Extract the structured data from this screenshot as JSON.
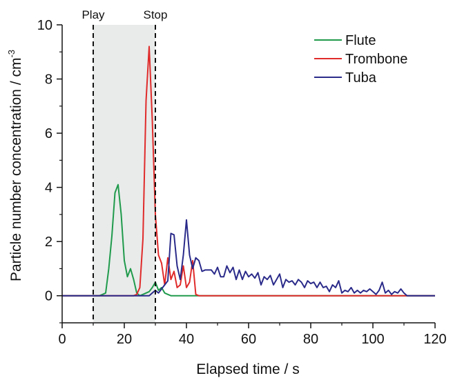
{
  "chart_data": {
    "type": "line",
    "title": "",
    "xlabel": "Elapsed time / s",
    "ylabel": "Particle number concentration / cm",
    "ylabel_superscript": "-3",
    "xlim": [
      0,
      120
    ],
    "ylim": [
      -1,
      10
    ],
    "x_ticks": [
      0,
      20,
      40,
      60,
      80,
      100,
      120
    ],
    "y_ticks": [
      0,
      2,
      4,
      6,
      8,
      10
    ],
    "grid": false,
    "legend_position": "top-right",
    "markers": [
      {
        "label": "Play",
        "x": 10
      },
      {
        "label": "Stop",
        "x": 30
      }
    ],
    "shaded_region": {
      "x": [
        10,
        30
      ],
      "color": "#e8ebea"
    },
    "series": [
      {
        "name": "Flute",
        "color": "#1f9a4b",
        "points": [
          [
            0,
            0
          ],
          [
            10,
            0
          ],
          [
            12,
            0
          ],
          [
            13,
            0.05
          ],
          [
            14,
            0.1
          ],
          [
            15,
            1.0
          ],
          [
            16,
            2.2
          ],
          [
            17,
            3.8
          ],
          [
            18,
            4.1
          ],
          [
            19,
            3.0
          ],
          [
            20,
            1.3
          ],
          [
            21,
            0.7
          ],
          [
            22,
            1.0
          ],
          [
            23,
            0.6
          ],
          [
            24,
            0.1
          ],
          [
            25,
            0
          ],
          [
            26,
            0.05
          ],
          [
            27,
            0.1
          ],
          [
            28,
            0.15
          ],
          [
            29,
            0.3
          ],
          [
            30,
            0.5
          ],
          [
            31,
            0.2
          ],
          [
            32,
            0.3
          ],
          [
            33,
            0.1
          ],
          [
            34,
            0.05
          ],
          [
            35,
            0
          ],
          [
            45,
            0
          ],
          [
            120,
            0
          ]
        ]
      },
      {
        "name": "Trombone",
        "color": "#e02a2a",
        "points": [
          [
            0,
            0
          ],
          [
            10,
            0
          ],
          [
            23,
            0
          ],
          [
            24,
            0.05
          ],
          [
            25,
            0.3
          ],
          [
            26,
            2.1
          ],
          [
            27,
            7.2
          ],
          [
            28,
            9.2
          ],
          [
            29,
            6.5
          ],
          [
            30,
            3.0
          ],
          [
            31,
            1.5
          ],
          [
            32,
            1.2
          ],
          [
            33,
            0.4
          ],
          [
            34,
            1.4
          ],
          [
            35,
            0.6
          ],
          [
            36,
            0.9
          ],
          [
            37,
            0.3
          ],
          [
            38,
            0.4
          ],
          [
            39,
            1.1
          ],
          [
            40,
            0.3
          ],
          [
            41,
            0.5
          ],
          [
            42,
            1.3
          ],
          [
            43,
            0.05
          ],
          [
            44,
            0
          ],
          [
            120,
            0
          ]
        ]
      },
      {
        "name": "Tuba",
        "color": "#2a2a8a",
        "points": [
          [
            0,
            0
          ],
          [
            28,
            0
          ],
          [
            29,
            0.1
          ],
          [
            30,
            0.2
          ],
          [
            31,
            0.1
          ],
          [
            32,
            0.25
          ],
          [
            33,
            0.4
          ],
          [
            34,
            0.55
          ],
          [
            35,
            2.3
          ],
          [
            36,
            2.25
          ],
          [
            37,
            1.1
          ],
          [
            38,
            0.6
          ],
          [
            39,
            1.5
          ],
          [
            40,
            2.8
          ],
          [
            41,
            1.5
          ],
          [
            42,
            1.0
          ],
          [
            43,
            1.4
          ],
          [
            44,
            1.3
          ],
          [
            45,
            0.9
          ],
          [
            46,
            0.95
          ],
          [
            47,
            0.95
          ],
          [
            48,
            0.95
          ],
          [
            49,
            0.8
          ],
          [
            50,
            1.05
          ],
          [
            51,
            0.7
          ],
          [
            52,
            0.7
          ],
          [
            53,
            1.1
          ],
          [
            54,
            0.85
          ],
          [
            55,
            1.05
          ],
          [
            56,
            0.6
          ],
          [
            57,
            0.95
          ],
          [
            58,
            0.6
          ],
          [
            59,
            0.9
          ],
          [
            60,
            0.7
          ],
          [
            61,
            0.8
          ],
          [
            62,
            0.65
          ],
          [
            63,
            0.85
          ],
          [
            64,
            0.4
          ],
          [
            65,
            0.7
          ],
          [
            66,
            0.6
          ],
          [
            67,
            0.75
          ],
          [
            68,
            0.4
          ],
          [
            69,
            0.6
          ],
          [
            70,
            0.8
          ],
          [
            71,
            0.3
          ],
          [
            72,
            0.6
          ],
          [
            73,
            0.5
          ],
          [
            74,
            0.55
          ],
          [
            75,
            0.4
          ],
          [
            76,
            0.6
          ],
          [
            77,
            0.5
          ],
          [
            78,
            0.3
          ],
          [
            79,
            0.55
          ],
          [
            80,
            0.45
          ],
          [
            81,
            0.5
          ],
          [
            82,
            0.3
          ],
          [
            83,
            0.5
          ],
          [
            84,
            0.3
          ],
          [
            85,
            0.35
          ],
          [
            86,
            0.15
          ],
          [
            87,
            0.4
          ],
          [
            88,
            0.3
          ],
          [
            89,
            0.55
          ],
          [
            90,
            0.1
          ],
          [
            91,
            0.2
          ],
          [
            92,
            0.15
          ],
          [
            93,
            0.3
          ],
          [
            94,
            0.1
          ],
          [
            95,
            0.2
          ],
          [
            96,
            0.1
          ],
          [
            97,
            0.2
          ],
          [
            98,
            0.15
          ],
          [
            99,
            0.25
          ],
          [
            100,
            0.15
          ],
          [
            101,
            0.05
          ],
          [
            102,
            0.2
          ],
          [
            103,
            0.5
          ],
          [
            104,
            0.1
          ],
          [
            105,
            0.2
          ],
          [
            106,
            0.05
          ],
          [
            107,
            0.15
          ],
          [
            108,
            0.1
          ],
          [
            109,
            0.25
          ],
          [
            110,
            0.1
          ],
          [
            111,
            0
          ],
          [
            120,
            0
          ]
        ]
      }
    ]
  }
}
